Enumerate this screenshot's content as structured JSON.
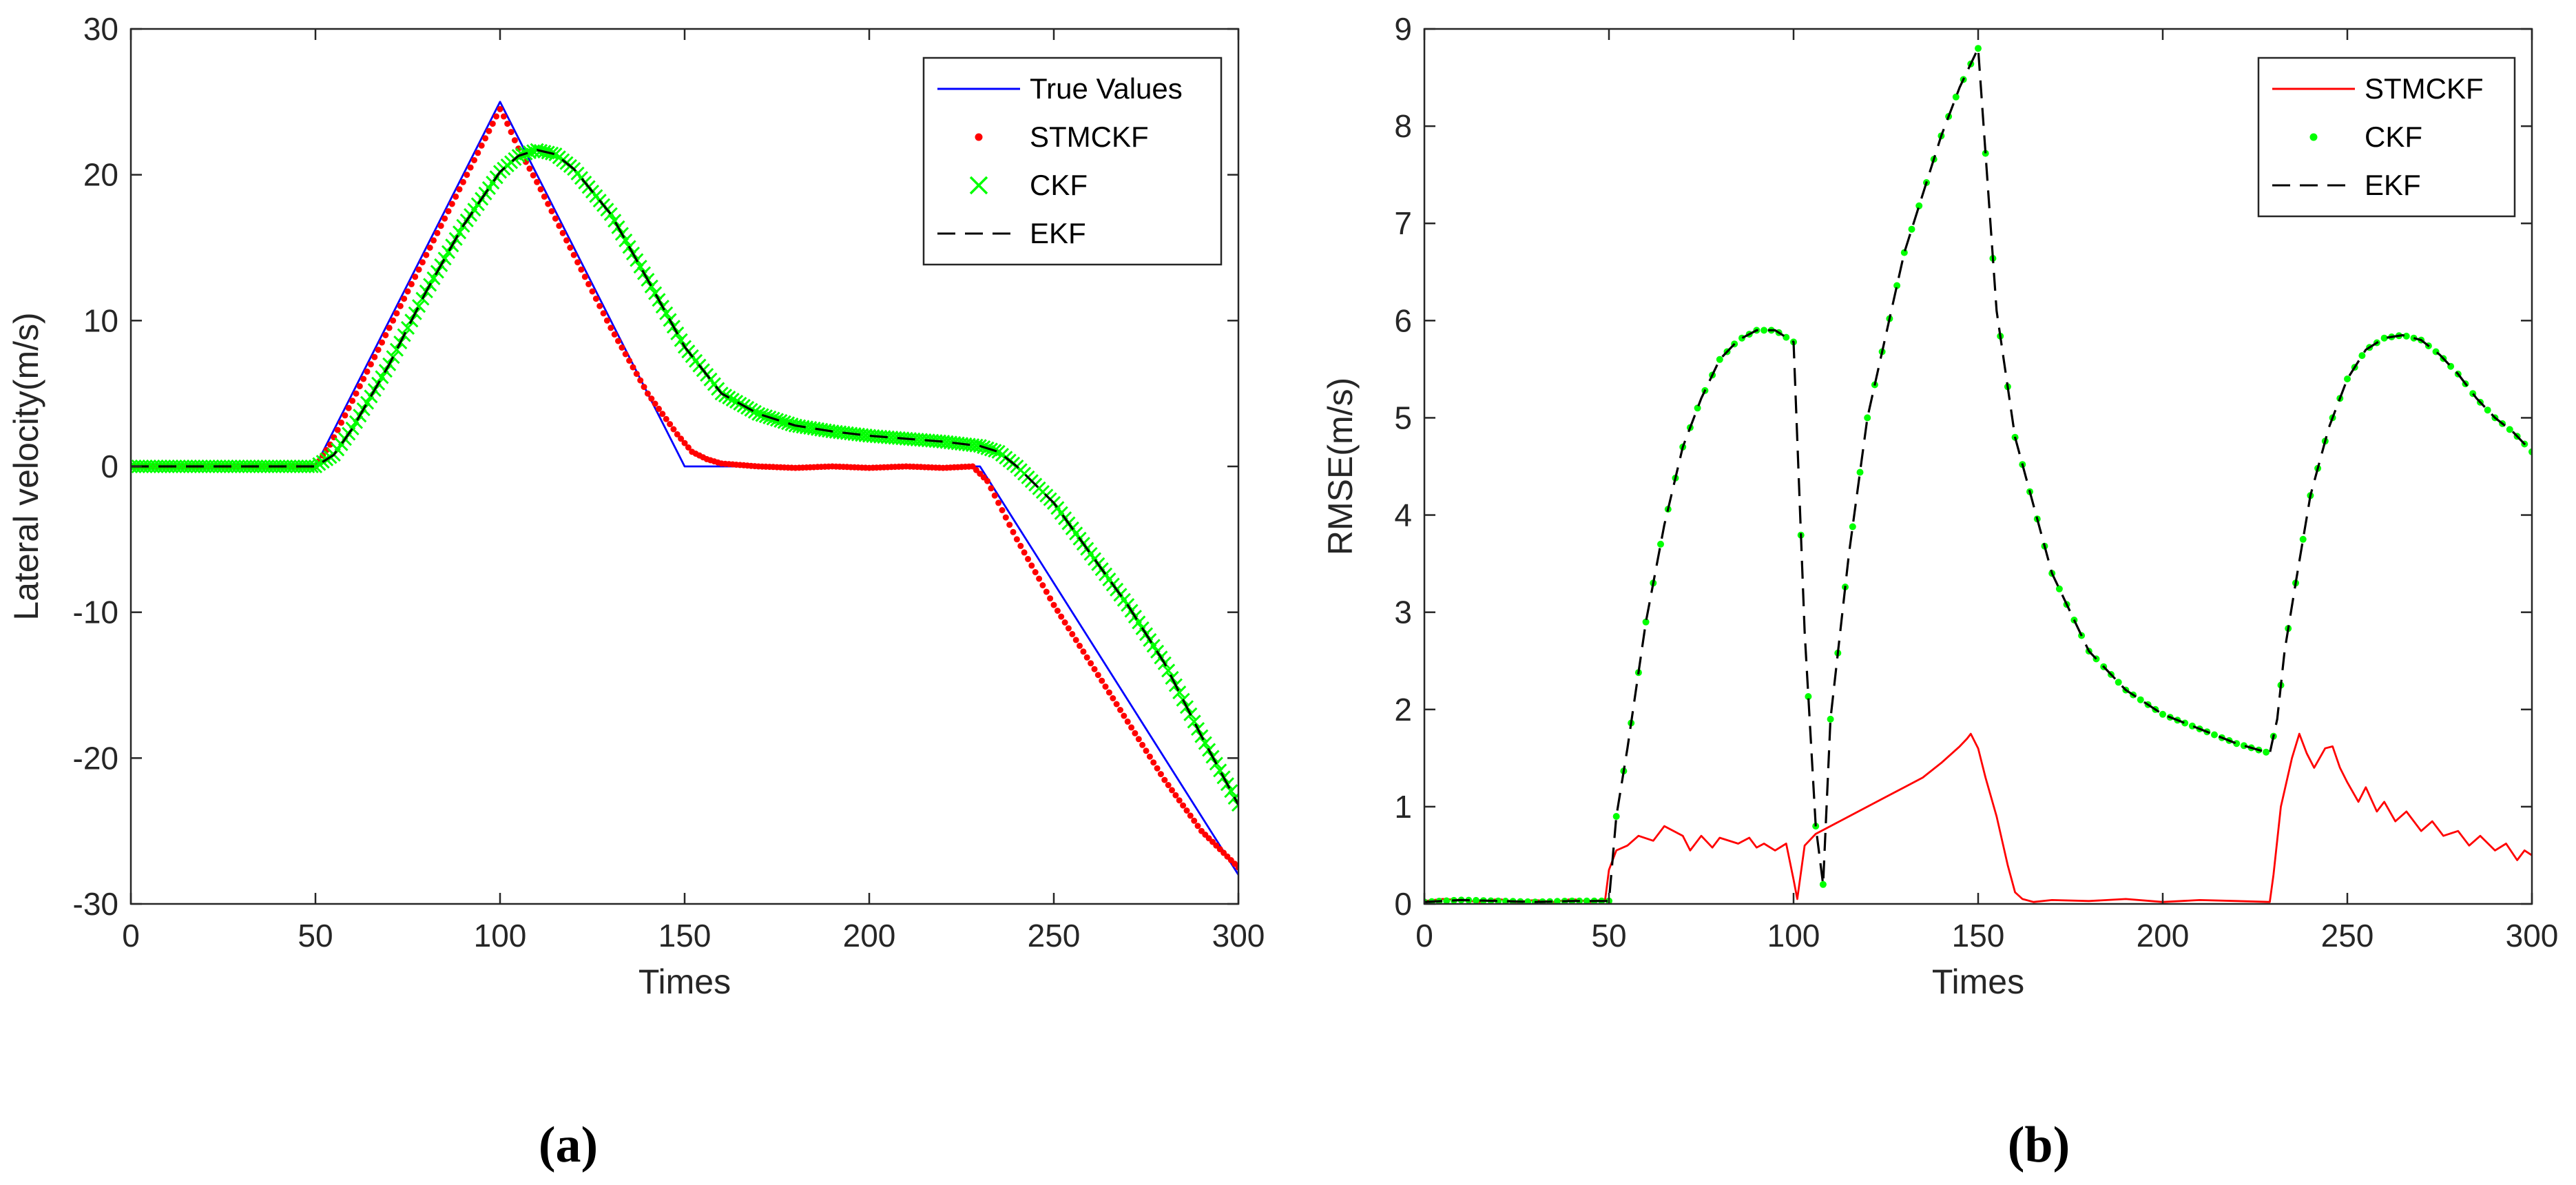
{
  "chart_data": [
    {
      "type": "line",
      "panel_label": "(a)",
      "xlabel": "Times",
      "ylabel": "Lateral velocity(m/s)",
      "xlim": [
        0,
        300
      ],
      "ylim": [
        -30,
        30
      ],
      "xticks": [
        0,
        50,
        100,
        150,
        200,
        250,
        300
      ],
      "yticks": [
        -30,
        -20,
        -10,
        0,
        10,
        20,
        30
      ],
      "legend_position": "top-right",
      "series": [
        {
          "name": "True Values",
          "style": "line",
          "color": "#0000ff",
          "x": [
            0,
            50,
            100,
            150,
            230,
            300
          ],
          "y": [
            0,
            0,
            25,
            0,
            0,
            -28
          ]
        },
        {
          "name": "STMCKF",
          "style": "dots",
          "color": "#ff0000",
          "x": [
            0,
            50,
            54,
            60,
            70,
            80,
            90,
            98,
            100,
            102,
            105,
            110,
            120,
            130,
            140,
            148,
            152,
            156,
            160,
            170,
            180,
            190,
            200,
            210,
            220,
            228,
            232,
            236,
            240,
            250,
            260,
            270,
            280,
            290,
            300
          ],
          "y": [
            0,
            0,
            1.5,
            4.5,
            9.5,
            14.5,
            19.5,
            23.5,
            24.5,
            23.5,
            21.8,
            19.5,
            14.5,
            9.5,
            5,
            2.2,
            1,
            0.5,
            0.2,
            0,
            -0.1,
            0,
            -0.1,
            0,
            -0.1,
            0,
            -1,
            -3,
            -5,
            -9.5,
            -13.5,
            -17.5,
            -21.5,
            -25,
            -27.5
          ]
        },
        {
          "name": "CKF",
          "style": "crosses",
          "color": "#00ff00",
          "x": [
            0,
            50,
            55,
            60,
            70,
            80,
            90,
            100,
            105,
            110,
            115,
            120,
            130,
            140,
            150,
            160,
            170,
            180,
            190,
            200,
            210,
            220,
            230,
            235,
            240,
            250,
            260,
            270,
            280,
            290,
            300
          ],
          "y": [
            0,
            0,
            0.8,
            2.6,
            7,
            12,
            16.5,
            20.2,
            21.3,
            21.7,
            21.4,
            20.4,
            17.3,
            12.8,
            8.2,
            5,
            3.6,
            2.8,
            2.4,
            2.1,
            1.9,
            1.7,
            1.4,
            1,
            0,
            -2.5,
            -6,
            -9.5,
            -13.5,
            -18.5,
            -23.2
          ]
        },
        {
          "name": "EKF",
          "style": "dashed",
          "color": "#000000",
          "x": [
            0,
            50,
            55,
            60,
            70,
            80,
            90,
            100,
            105,
            110,
            115,
            120,
            130,
            140,
            150,
            160,
            170,
            180,
            190,
            200,
            210,
            220,
            230,
            235,
            240,
            250,
            260,
            270,
            280,
            290,
            300
          ],
          "y": [
            0,
            0,
            0.8,
            2.6,
            7,
            12,
            16.5,
            20.2,
            21.3,
            21.7,
            21.4,
            20.4,
            17.3,
            12.8,
            8.2,
            5,
            3.6,
            2.8,
            2.4,
            2.1,
            1.9,
            1.7,
            1.4,
            1,
            0,
            -2.5,
            -6,
            -9.5,
            -13.5,
            -18.5,
            -23.2
          ]
        }
      ]
    },
    {
      "type": "line",
      "panel_label": "(b)",
      "xlabel": "Times",
      "ylabel": "RMSE(m/s)",
      "xlim": [
        0,
        300
      ],
      "ylim": [
        0,
        9
      ],
      "xticks": [
        0,
        50,
        100,
        150,
        200,
        250,
        300
      ],
      "yticks": [
        0,
        1,
        2,
        3,
        4,
        5,
        6,
        7,
        8,
        9
      ],
      "legend_position": "top-right",
      "series": [
        {
          "name": "STMCKF",
          "style": "line",
          "color": "#ff0000",
          "x": [
            0,
            5,
            10,
            15,
            20,
            25,
            30,
            35,
            40,
            45,
            49,
            50,
            52,
            55,
            58,
            62,
            65,
            70,
            72,
            75,
            78,
            80,
            85,
            88,
            90,
            92,
            95,
            98,
            100,
            101,
            103,
            106,
            110,
            115,
            120,
            125,
            130,
            135,
            140,
            145,
            147,
            148,
            150,
            152,
            155,
            158,
            160,
            162,
            165,
            170,
            180,
            190,
            200,
            210,
            220,
            229,
            230,
            232,
            235,
            237,
            239,
            241,
            244,
            246,
            248,
            250,
            253,
            255,
            258,
            260,
            263,
            266,
            270,
            273,
            276,
            280,
            283,
            286,
            290,
            293,
            296,
            298,
            300
          ],
          "y": [
            0.03,
            0.05,
            0.04,
            0.02,
            0.05,
            0.02,
            0.04,
            0.02,
            0.05,
            0.02,
            0.05,
            0.35,
            0.55,
            0.6,
            0.7,
            0.65,
            0.8,
            0.7,
            0.55,
            0.7,
            0.58,
            0.68,
            0.62,
            0.68,
            0.58,
            0.62,
            0.55,
            0.62,
            0.25,
            0.05,
            0.6,
            0.72,
            0.8,
            0.9,
            1.0,
            1.1,
            1.2,
            1.3,
            1.45,
            1.62,
            1.7,
            1.75,
            1.6,
            1.3,
            0.9,
            0.4,
            0.12,
            0.05,
            0.02,
            0.04,
            0.03,
            0.05,
            0.02,
            0.04,
            0.03,
            0.02,
            0.3,
            1.0,
            1.5,
            1.75,
            1.55,
            1.4,
            1.6,
            1.62,
            1.4,
            1.25,
            1.05,
            1.2,
            0.95,
            1.05,
            0.85,
            0.95,
            0.75,
            0.85,
            0.7,
            0.75,
            0.6,
            0.7,
            0.55,
            0.62,
            0.45,
            0.55,
            0.5
          ]
        },
        {
          "name": "CKF",
          "style": "dots",
          "color": "#00ff00",
          "x": [
            0,
            10,
            20,
            30,
            40,
            50,
            52,
            55,
            60,
            65,
            70,
            75,
            80,
            85,
            90,
            95,
            100,
            103,
            106,
            108,
            110,
            115,
            120,
            130,
            140,
            145,
            150,
            155,
            160,
            170,
            180,
            190,
            200,
            210,
            220,
            229,
            231,
            233,
            236,
            240,
            245,
            250,
            255,
            260,
            265,
            270,
            275,
            280,
            285,
            290,
            295,
            300
          ],
          "y": [
            0.02,
            0.04,
            0.03,
            0.02,
            0.03,
            0.03,
            0.9,
            1.6,
            2.9,
            3.9,
            4.7,
            5.2,
            5.6,
            5.8,
            5.9,
            5.9,
            5.78,
            2.8,
            0.8,
            0.2,
            1.9,
            3.6,
            5.0,
            6.7,
            7.9,
            8.4,
            8.8,
            6.1,
            4.8,
            3.4,
            2.6,
            2.2,
            1.95,
            1.8,
            1.65,
            1.55,
            1.9,
            2.6,
            3.3,
            4.2,
            4.9,
            5.4,
            5.7,
            5.82,
            5.85,
            5.8,
            5.65,
            5.45,
            5.2,
            5.0,
            4.85,
            4.65
          ]
        },
        {
          "name": "EKF",
          "style": "dashed",
          "color": "#000000",
          "x": [
            0,
            10,
            20,
            30,
            40,
            50,
            52,
            55,
            60,
            65,
            70,
            75,
            80,
            85,
            90,
            95,
            100,
            103,
            106,
            108,
            110,
            115,
            120,
            130,
            140,
            145,
            150,
            155,
            160,
            170,
            180,
            190,
            200,
            210,
            220,
            229,
            231,
            233,
            236,
            240,
            245,
            250,
            255,
            260,
            265,
            270,
            275,
            280,
            285,
            290,
            295,
            300
          ],
          "y": [
            0.02,
            0.04,
            0.03,
            0.02,
            0.03,
            0.03,
            0.9,
            1.6,
            2.9,
            3.9,
            4.7,
            5.2,
            5.6,
            5.8,
            5.9,
            5.9,
            5.78,
            2.8,
            0.8,
            0.2,
            1.9,
            3.6,
            5.0,
            6.7,
            7.9,
            8.4,
            8.8,
            6.1,
            4.8,
            3.4,
            2.6,
            2.2,
            1.95,
            1.8,
            1.65,
            1.55,
            1.9,
            2.6,
            3.3,
            4.2,
            4.9,
            5.4,
            5.7,
            5.82,
            5.85,
            5.8,
            5.65,
            5.45,
            5.2,
            5.0,
            4.85,
            4.65
          ]
        }
      ]
    }
  ]
}
